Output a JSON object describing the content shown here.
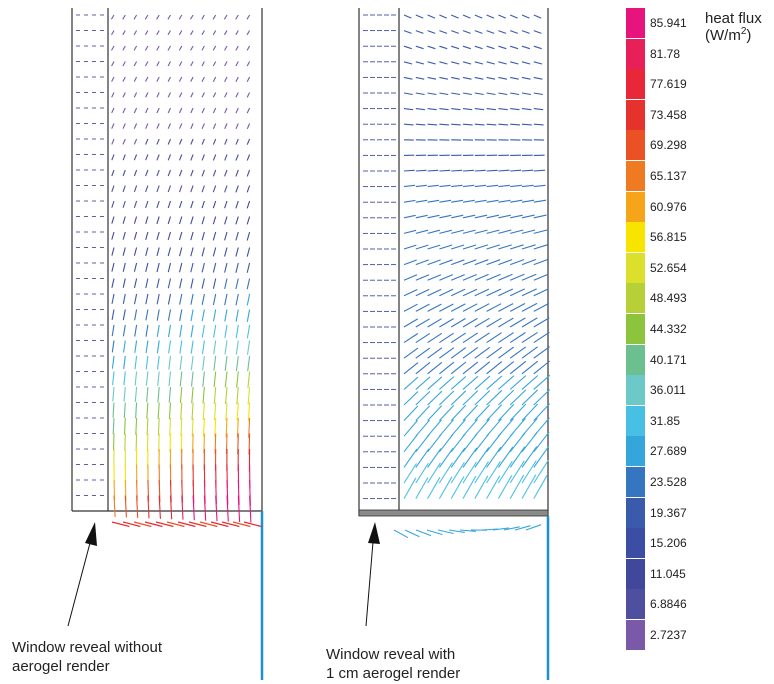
{
  "legend": {
    "title_line1": "heat flux",
    "title_line2_prefix": "(W/m",
    "title_line2_sup": "2",
    "title_line2_suffix": ")",
    "items": [
      {
        "label": "85.941",
        "color": "#e8147d"
      },
      {
        "label": "81.78",
        "color": "#e8205a"
      },
      {
        "label": "77.619",
        "color": "#e82838"
      },
      {
        "label": "73.458",
        "color": "#e6322c"
      },
      {
        "label": "69.298",
        "color": "#ea5226"
      },
      {
        "label": "65.137",
        "color": "#f07a22"
      },
      {
        "label": "60.976",
        "color": "#f6a41a"
      },
      {
        "label": "56.815",
        "color": "#f7e400"
      },
      {
        "label": "52.654",
        "color": "#dce02c"
      },
      {
        "label": "48.493",
        "color": "#b8d038"
      },
      {
        "label": "44.332",
        "color": "#8cc43e"
      },
      {
        "label": "40.171",
        "color": "#6cc090"
      },
      {
        "label": "36.011",
        "color": "#6cc9c8"
      },
      {
        "label": "31.85",
        "color": "#48c0e4"
      },
      {
        "label": "27.689",
        "color": "#34a6dc"
      },
      {
        "label": "23.528",
        "color": "#3676c0"
      },
      {
        "label": "19.367",
        "color": "#3a5aac"
      },
      {
        "label": "15.206",
        "color": "#3c4ea4"
      },
      {
        "label": "11.045",
        "color": "#41489c"
      },
      {
        "label": "6.8846",
        "color": "#4e4f9e"
      },
      {
        "label": "2.7237",
        "color": "#7a59a8"
      }
    ]
  },
  "captions": {
    "left_line1": "Window reveal without",
    "left_line2": "aerogel render",
    "right_line1": "Window reveal with",
    "right_line2": "1 cm aerogel render"
  },
  "colors": {
    "frame": "#333333",
    "pane": "#1f8fd0",
    "aerogel": "#8a8a8a"
  }
}
